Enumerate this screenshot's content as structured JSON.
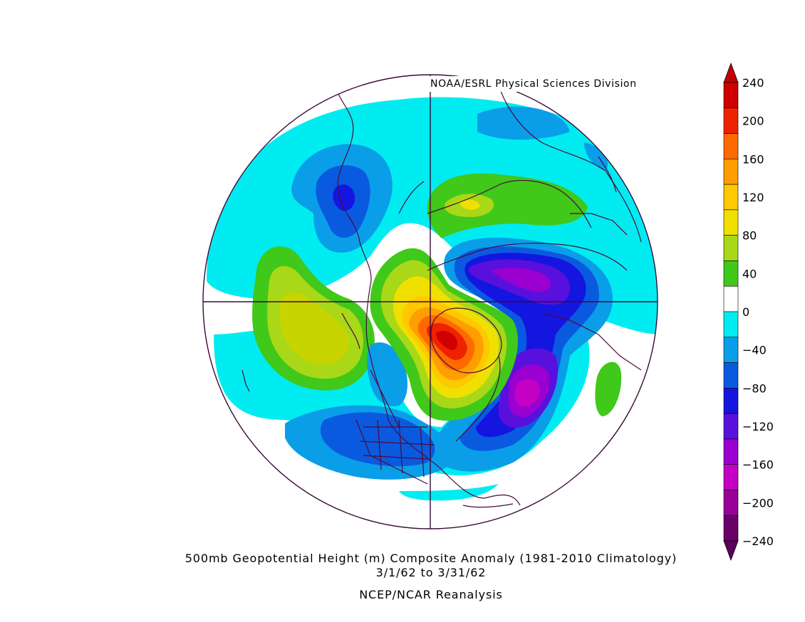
{
  "credit": "NOAA/ESRL Physical Sciences Division",
  "title": "500mb Geopotential Height (m) Composite Anomaly (1981-2010 Climatology)",
  "date_range": "3/1/62  to 3/31/62",
  "source": "NCEP/NCAR Reanalysis",
  "colorbar": {
    "labels": [
      "240",
      "200",
      "160",
      "120",
      "80",
      "40",
      "0",
      "-40",
      "-80",
      "-120",
      "-160",
      "-200",
      "-240"
    ],
    "colors": [
      "#d10000",
      "#ee2200",
      "#ff6a00",
      "#ff9e00",
      "#ffc800",
      "#f0e000",
      "#a8d818",
      "#40c81a",
      "#ffffff",
      "#00ecf0",
      "#0a9ee8",
      "#0a5ae0",
      "#1515e0",
      "#5a10dc",
      "#9a00d0",
      "#c400c4",
      "#980098",
      "#6a006a"
    ],
    "top_arrow_color": "#c40000",
    "bottom_arrow_color": "#5a005a"
  }
}
